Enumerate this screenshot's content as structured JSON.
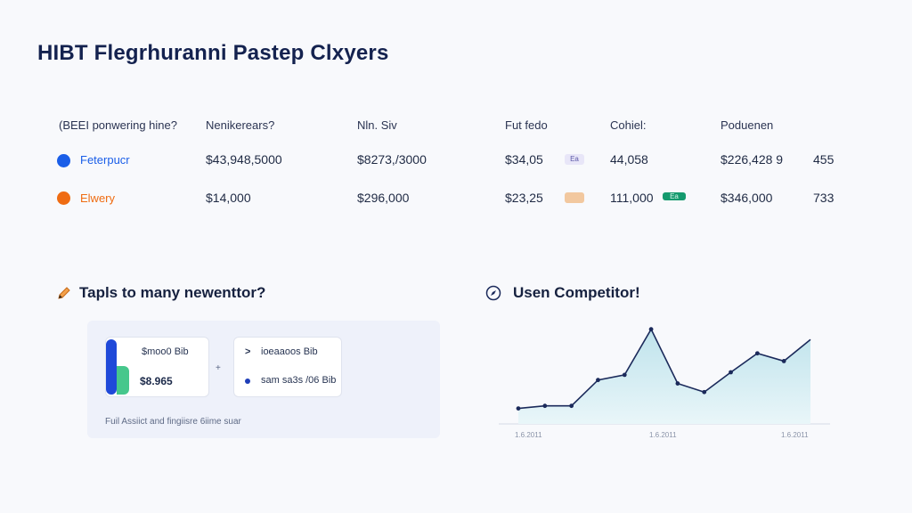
{
  "title": "HIBT Flegrhuranni Pastep Clxyers",
  "table": {
    "headers": [
      "(BEEI ponwering hine?",
      "Nenikerears?",
      "Nln. Siv",
      "Fut fedo",
      "Cohiel:",
      "Poduenen"
    ],
    "rows": [
      {
        "name": "Feterpucr",
        "color": "#1a5ee8",
        "v1": "$43,948,5000",
        "v2": "$8273,/3000",
        "v3": "$34,05",
        "tag1": "Ea",
        "v4": "44,058",
        "tag2": "",
        "v5": "$226,428 9",
        "v6": "455"
      },
      {
        "name": "Elwery",
        "color": "#ef6c12",
        "v1": "$14,000",
        "v2": "$296,000",
        "v3": "$23,25",
        "tag1": "",
        "v4": "111,000",
        "tag2": "Ea",
        "v5": "$346,000",
        "v6": "733"
      }
    ]
  },
  "left_section": {
    "title": "Tapls to many newenttor?",
    "icon": "pencil-icon",
    "card1": {
      "label": "$moo0 Bib",
      "value": "$8.965"
    },
    "card2": {
      "line1": "ioeaaoos Bib",
      "line2": "sam sa3s /06 Bib"
    },
    "arrow": ">",
    "footer": "Fuil Assiict and fingiisre 6iime suar"
  },
  "right_section": {
    "title": "Usen Competitor!",
    "icon": "compass-icon"
  },
  "chart_data": {
    "type": "area",
    "x": [
      0,
      1,
      2,
      3,
      4,
      5,
      6,
      7,
      8,
      9,
      10,
      11
    ],
    "values": [
      18,
      21,
      21,
      51,
      57,
      110,
      47,
      37,
      60,
      82,
      73,
      98
    ],
    "tick_labels": [
      "1.6.2011",
      "1.6.2011",
      "1.6.2011"
    ],
    "ylim": [
      0,
      120
    ],
    "colors": {
      "line": "#1b2a5b",
      "fill": "#cde9ef"
    }
  }
}
